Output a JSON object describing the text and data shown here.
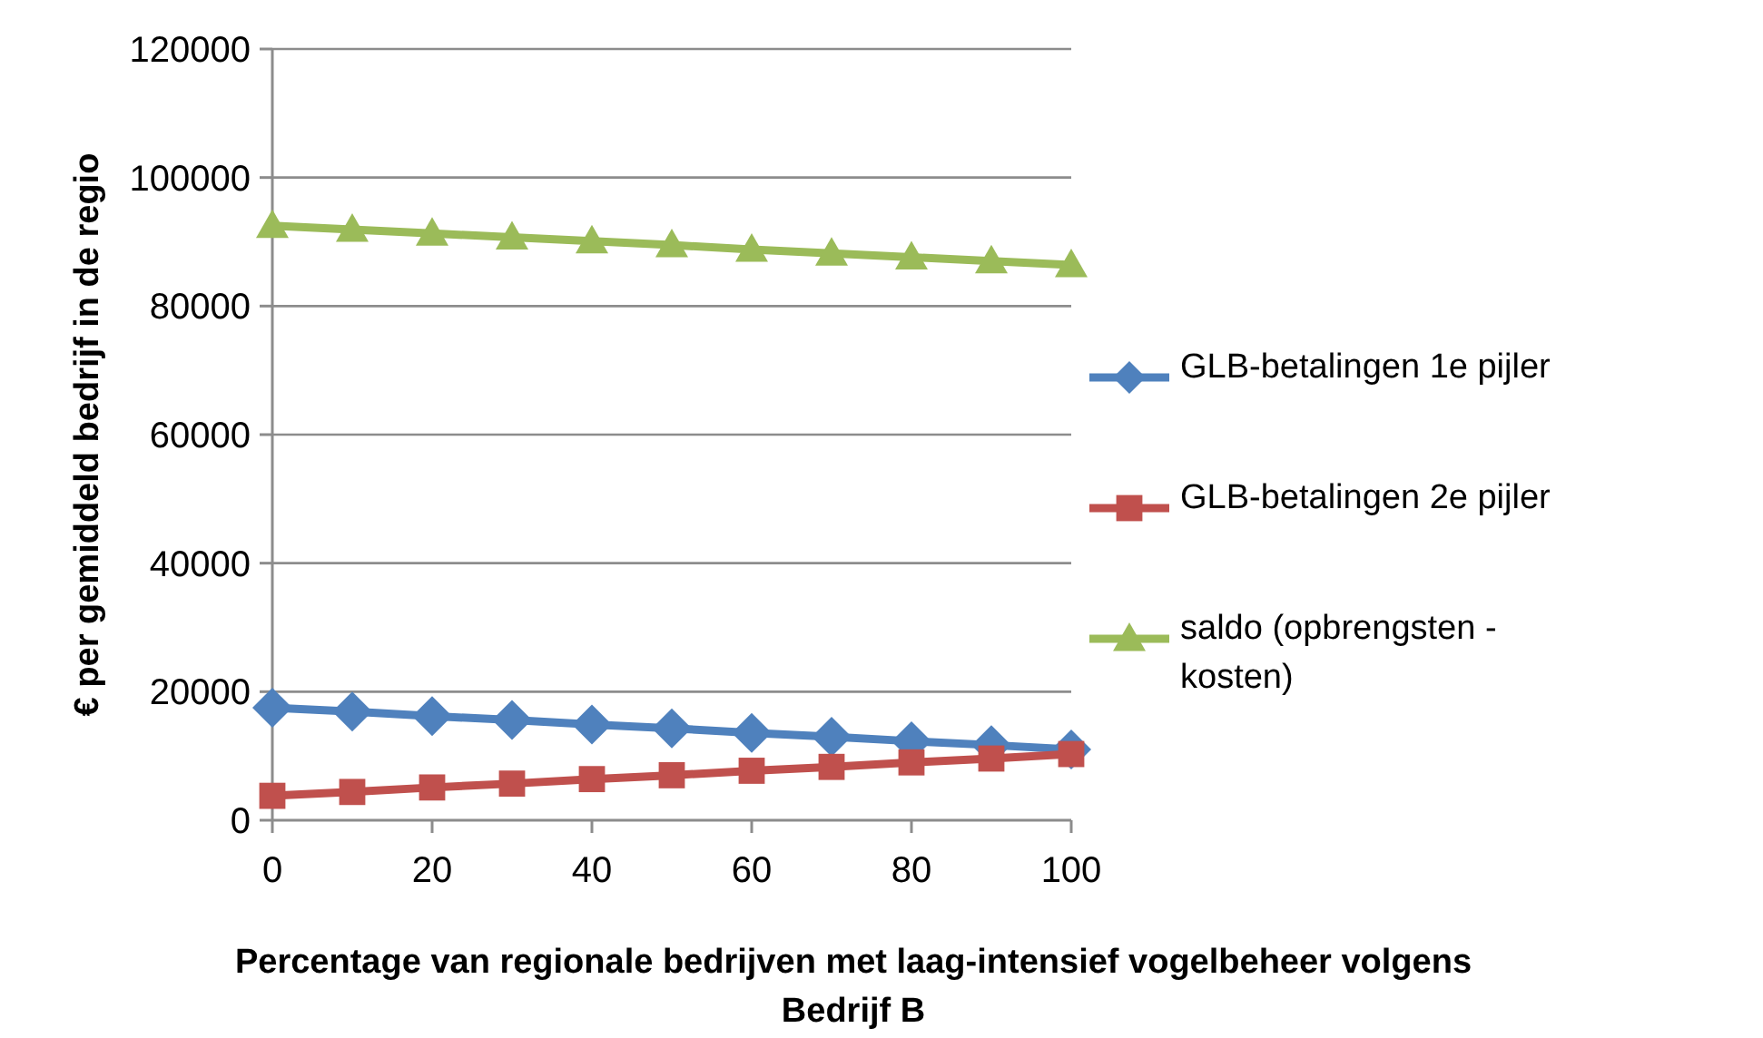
{
  "chart_data": {
    "type": "line",
    "xlabel": "Percentage van regionale bedrijven met laag-intensief vogelbeheer volgens Bedrijf B",
    "ylabel": "€ per gemiddeld bedrijf in de regio",
    "x": [
      0,
      10,
      20,
      30,
      40,
      50,
      60,
      70,
      80,
      90,
      100
    ],
    "xlim": [
      0,
      100
    ],
    "xticks": [
      0,
      20,
      40,
      60,
      80,
      100
    ],
    "ylim": [
      0,
      120000
    ],
    "yticks": [
      0,
      20000,
      40000,
      60000,
      80000,
      100000,
      120000
    ],
    "grid": "y",
    "legend": "right",
    "series": [
      {
        "name": "GLB-betalingen 1e pijler",
        "color": "#4f81bd",
        "marker": "diamond",
        "values": [
          17500,
          16900,
          16200,
          15600,
          14900,
          14300,
          13600,
          13000,
          12300,
          11700,
          11000
        ]
      },
      {
        "name": "GLB-betalingen 2e pijler",
        "color": "#c0504d",
        "marker": "square",
        "values": [
          3800,
          4400,
          5100,
          5700,
          6400,
          7000,
          7700,
          8300,
          9000,
          9600,
          10300
        ]
      },
      {
        "name": "saldo (opbrengsten - kosten)",
        "color": "#9bbb59",
        "marker": "triangle",
        "values": [
          92500,
          91900,
          91300,
          90700,
          90100,
          89500,
          88800,
          88200,
          87600,
          87000,
          86400
        ]
      }
    ]
  }
}
